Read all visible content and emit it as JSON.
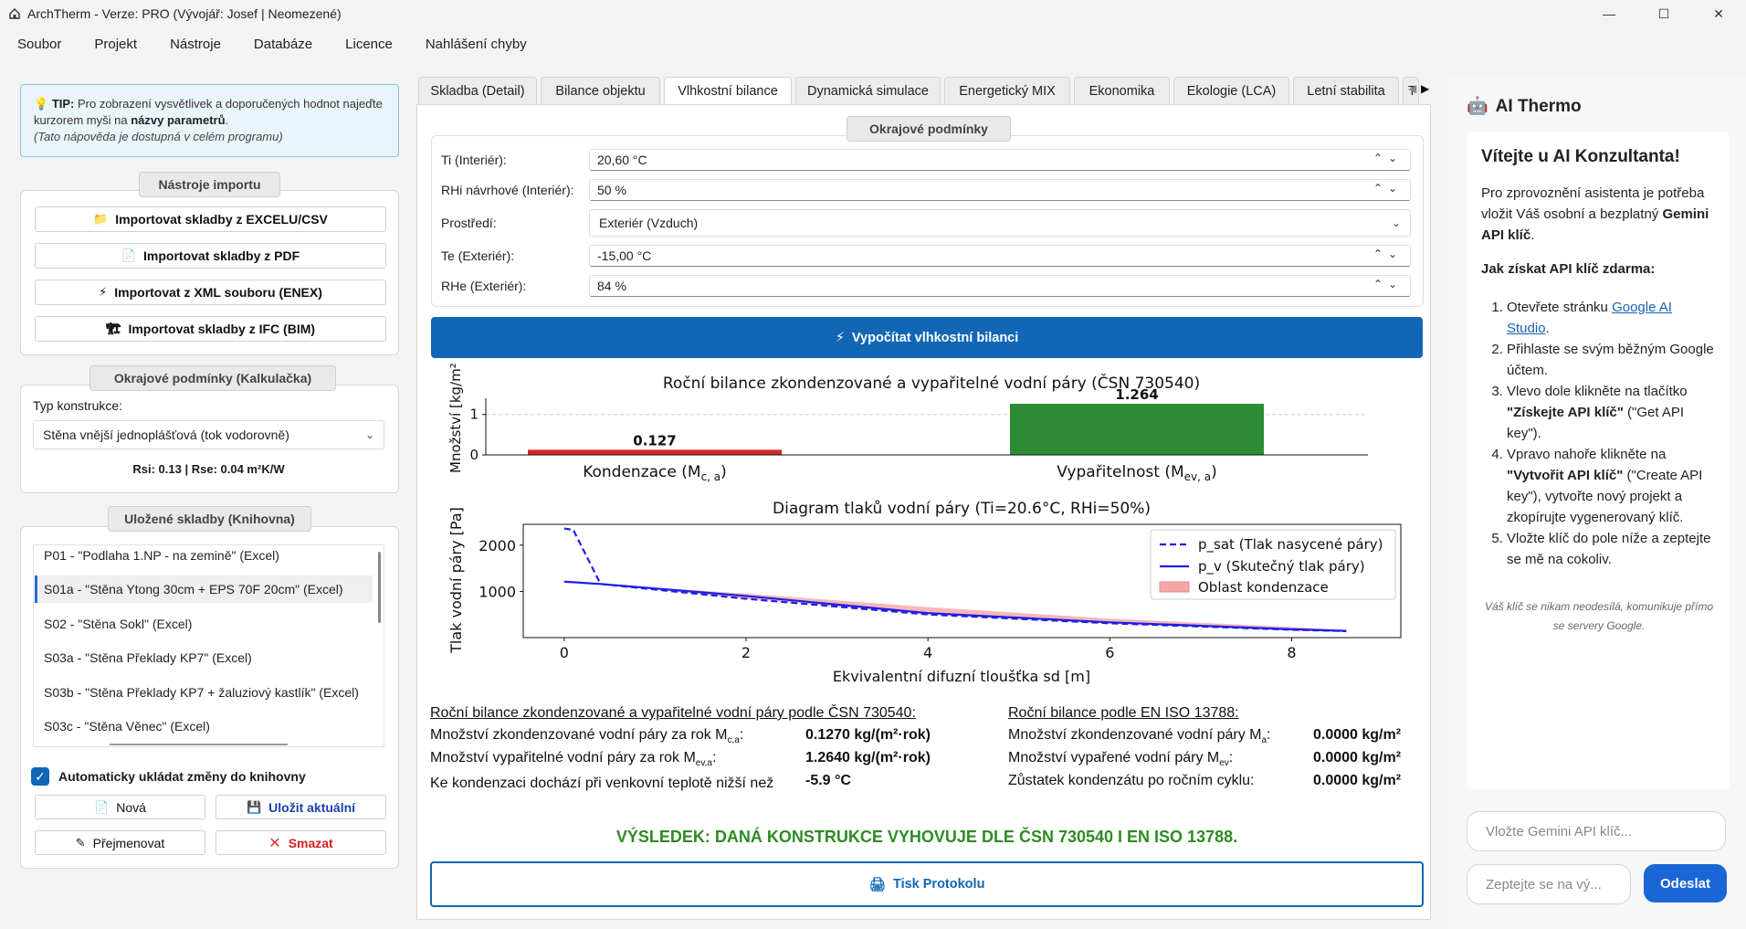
{
  "window": {
    "title": "ArchTherm - Verze: PRO (Vývojář: Josef | Neomezené)",
    "min": "—",
    "max": "☐",
    "close": "✕"
  },
  "menu": [
    "Soubor",
    "Projekt",
    "Nástroje",
    "Databáze",
    "Licence",
    "Nahlášení chyby"
  ],
  "tip": {
    "prefix": "TIP:",
    "text1": " Pro zobrazení vysvětlivek a doporučených hodnot najeďte kurzorem myši na ",
    "bold": "názvy parametrů",
    "text2": ".",
    "italic": "(Tato nápověda je dostupná v celém programu)"
  },
  "import": {
    "title": "Nástroje importu",
    "buttons": [
      "Importovat skladby z EXCELU/CSV",
      "Importovat skladby z PDF",
      "Importovat z XML souboru (ENEX)",
      "Importovat skladby z IFC (BIM)"
    ]
  },
  "calc": {
    "title": "Okrajové podmínky (Kalkulačka)",
    "type_label": "Typ konstrukce:",
    "type_value": "Stěna vnější jednoplášťová (tok vodorovně)",
    "rs": "Rsi: 0.13 | Rse: 0.04 m²K/W"
  },
  "library": {
    "title": "Uložené skladby (Knihovna)",
    "items": [
      "P01 - \"Podlaha 1.NP - na zemině\" (Excel)",
      "S01a - \"Stěna Ytong 30cm + EPS 70F 20cm\" (Excel)",
      "S02 - \"Stěna Sokl\" (Excel)",
      "S03a - \"Stěna Překlady KP7\" (Excel)",
      "S03b - \"Stěna Překlady KP7 + žaluziový kastlík\" (Excel)",
      "S03c - \"Stěna Věnec\" (Excel)"
    ],
    "autosave": "Automaticky ukládat změny do knihovny",
    "new": "Nová",
    "save": "Uložit aktuální",
    "rename": "Přejmenovat",
    "delete": "Smazat"
  },
  "tabs": [
    "Skladba (Detail)",
    "Bilance objektu",
    "Vlhkostní bilance",
    "Dynamická simulace",
    "Energetický MIX",
    "Ekonomika",
    "Ekologie (LCA)",
    "Letní stabilita",
    "T"
  ],
  "conditions": {
    "title": "Okrajové podmínky",
    "fields": [
      {
        "label": "Ti (Interiér):",
        "value": "20,60 °C"
      },
      {
        "label": "RHi návrhové (Interiér):",
        "value": "50 %"
      },
      {
        "label": "Prostředí:",
        "value": "Exteriér (Vzduch)"
      },
      {
        "label": "Te (Exteriér):",
        "value": "-15,00 °C"
      },
      {
        "label": "RHe (Exteriér):",
        "value": "84 %"
      }
    ]
  },
  "calc_button": "Vypočítat vlhkostní bilanci",
  "chart_data": [
    {
      "type": "bar",
      "title": "Roční bilance zkondenzované a vypařitelné vodní páry (ČSN 730540)",
      "ylabel": "Množství [kg/m²",
      "categories": [
        "Kondenzace (M",
        "Vypařitelnost (M"
      ],
      "category_subscripts": [
        "c, a",
        "ev, a"
      ],
      "values": [
        0.127,
        1.264
      ],
      "value_labels": [
        "0.127",
        "1.264"
      ],
      "colors": [
        "#d62728",
        "#2e8b35"
      ],
      "yticks": [
        "0",
        "1"
      ],
      "ylim": [
        0,
        1.4
      ]
    },
    {
      "type": "line",
      "title": "Diagram tlaků vodní páry (Ti=20.6°C, RHi=50%)",
      "xlabel": "Ekvivalentní difuzní tloušťka sd [m]",
      "ylabel": "Tlak vodní páry [Pa]",
      "xticks": [
        "0",
        "2",
        "4",
        "6",
        "8"
      ],
      "yticks": [
        "1000",
        "2000"
      ],
      "xlim": [
        -0.45,
        9.2
      ],
      "ylim": [
        0,
        2450
      ],
      "series": [
        {
          "name": "p_sat (Tlak nasycené páry)",
          "x": [
            0,
            0.1,
            0.4,
            2,
            4,
            6,
            8,
            8.6
          ],
          "y": [
            2360,
            2330,
            1160,
            840,
            500,
            310,
            170,
            140
          ],
          "color": "#1e1ee6",
          "dash": true
        },
        {
          "name": "p_v (Skutečný tlak páry)",
          "x": [
            0,
            0.4,
            2,
            4,
            6,
            8,
            8.6
          ],
          "y": [
            1210,
            1160,
            900,
            530,
            330,
            180,
            145
          ],
          "color": "#1e1ee6",
          "dash": false
        }
      ],
      "fill": {
        "name": "Oblast kondenzace",
        "x": [
          0.4,
          2,
          4,
          6,
          8,
          8.6
        ],
        "upper": [
          1160,
          950,
          660,
          410,
          230,
          160
        ],
        "lower": [
          1160,
          840,
          500,
          310,
          170,
          140
        ]
      }
    }
  ],
  "results": {
    "csn_title": "Roční bilance zkondenzované a vypařitelné vodní páry podle ČSN 730540:",
    "csn_rows": [
      {
        "label": "Množství zkondenzované vodní páry za rok M",
        "sub": "c,a",
        "suffix": ":",
        "value": "0.1270 kg/(m²·rok)"
      },
      {
        "label": "Množství vypařitelné vodní páry za rok M",
        "sub": "ev,a",
        "suffix": ":",
        "value": "1.2640 kg/(m²·rok)"
      },
      {
        "label": "Ke kondenzaci dochází při venkovní teplotě nižší než",
        "sub": "",
        "suffix": "",
        "value": "-5.9 °C"
      }
    ],
    "iso_title": "Roční bilance podle EN ISO 13788:",
    "iso_rows": [
      {
        "label": "Množství zkondenzované vodní páry M",
        "sub": "a",
        "suffix": ":",
        "value": "0.0000 kg/m²"
      },
      {
        "label": "Množství vypařené vodní páry M",
        "sub": "ev",
        "suffix": ":",
        "value": "0.0000 kg/m²"
      },
      {
        "label": "Zůstatek kondenzátu po ročním cyklu:",
        "sub": "",
        "suffix": "",
        "value": "0.0000 kg/m²"
      }
    ],
    "verdict": "VÝSLEDEK: DANÁ KONSTRUKCE VYHOVUJE DLE ČSN 730540 I EN ISO 13788.",
    "print": "Tisk Protokolu"
  },
  "ai": {
    "title": "AI Thermo",
    "welcome": "Vítejte u AI Konzultanta!",
    "intro1": "Pro zprovoznění asistenta je potřeba vložit Váš osobní a bezplatný ",
    "intro_bold": "Gemini API klíč",
    "intro2": ".",
    "howto": "Jak získat API klíč zdarma:",
    "s1a": "Otevřete stránku ",
    "s1link": "Google AI Studio",
    "s1b": ".",
    "s2": "Přihlaste se svým běžným Google účtem.",
    "s3a": "Vlevo dole klikněte na tlačítko ",
    "s3b": "\"Získejte API klíč\"",
    "s3c": " (\"Get API key\").",
    "s4a": "Vpravo nahoře klikněte na ",
    "s4b": "\"Vytvořit API klíč\"",
    "s4c": " (\"Create API key\"), vytvořte nový projekt a zkopírujte vygenerovaný klíč.",
    "s5": "Vložte klíč do pole níže a zeptejte se mě na cokoliv.",
    "note": "Váš klíč se nikam neodesílá, komunikuje přímo se servery Google.",
    "key_placeholder": "Vložte Gemini API klíč...",
    "ask_placeholder": "Zeptejte se na vý...",
    "send": "Odeslat"
  },
  "colors": {
    "accent": "#1266b6",
    "success": "#2e8b23",
    "danger": "#e03030"
  }
}
